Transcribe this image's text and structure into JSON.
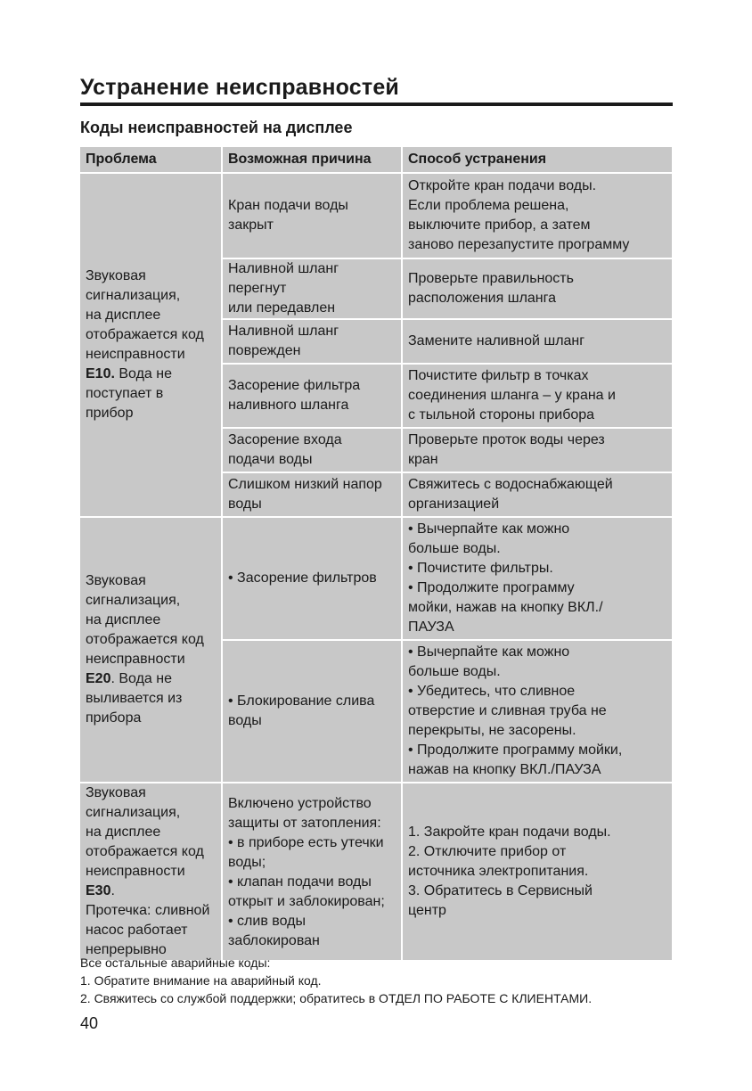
{
  "title": "Устранение неисправностей",
  "subtitle": "Коды неисправностей на дисплее",
  "table": {
    "headers": [
      "Проблема",
      "Возможная причина",
      "Способ устранения"
    ],
    "groups": [
      {
        "problem_pre": "Звуковая\nсигнализация,\nна дисплее\nотображается код\nнеисправности\n",
        "code": "E10.",
        "problem_post": " Вода не\nпоступает в\nприбор",
        "rows": [
          {
            "cause": "Кран подачи воды\nзакрыт",
            "fix": "Откройте кран подачи воды.\nЕсли проблема решена,\nвыключите прибор, а затем\nзаново перезапустите программу"
          },
          {
            "cause": "Наливной шланг перегнут\nили передавлен",
            "fix": "Проверьте правильность\nрасположения шланга"
          },
          {
            "cause": "Наливной шланг\nповрежден",
            "fix": "Замените наливной шланг"
          },
          {
            "cause": "Засорение фильтра\nналивного шланга",
            "fix": "Почистите фильтр в точках\nсоединения шланга – у крана и\nс тыльной стороны прибора"
          },
          {
            "cause": "Засорение входа\nподачи воды",
            "fix": "Проверьте проток воды через\nкран"
          },
          {
            "cause": "Слишком низкий напор\nводы",
            "fix": "Свяжитесь с водоснабжающей\nорганизацией"
          }
        ]
      },
      {
        "problem_pre": "Звуковая\nсигнализация,\nна дисплее\nотображается код\nнеисправности\n",
        "code": "E20",
        "problem_post": ". Вода не\nвыливается из\nприбора",
        "rows": [
          {
            "cause": "• Засорение фильтров",
            "fix": "• Вычерпайте как можно\nбольше воды.\n• Почистите фильтры.\n• Продолжите программу\nмойки, нажав на кнопку ВКЛ./\nПАУЗА"
          },
          {
            "cause": "• Блокирование слива\nводы",
            "fix": "• Вычерпайте как можно\nбольше воды.\n• Убедитесь, что сливное\nотверстие и сливная труба не\nперекрыты, не засорены.\n• Продолжите программу мойки,\nнажав на кнопку ВКЛ./ПАУЗА"
          }
        ]
      },
      {
        "problem_pre": "Звуковая\nсигнализация,\nна дисплее\nотображается код\nнеисправности ",
        "code": "E30",
        "problem_post": ".\nПротечка: сливной\nнасос работает\nнепрерывно",
        "rows": [
          {
            "cause": "Включено устройство\nзащиты от затопления:\n• в приборе есть утечки\nводы;\n• клапан подачи воды\nоткрыт и заблокирован;\n• слив воды\nзаблокирован",
            "fix": "1. Закройте кран подачи воды.\n2. Отключите прибор от\nисточника электропитания.\n3. Обратитесь в Сервисный\nцентр"
          }
        ]
      }
    ]
  },
  "footer": [
    "Все остальные аварийные коды:",
    "1. Обратите внимание на аварийный код.",
    "2. Свяжитесь со службой поддержки; обратитесь в ОТДЕЛ ПО РАБОТЕ С КЛИЕНТАМИ."
  ],
  "page_number": "40"
}
